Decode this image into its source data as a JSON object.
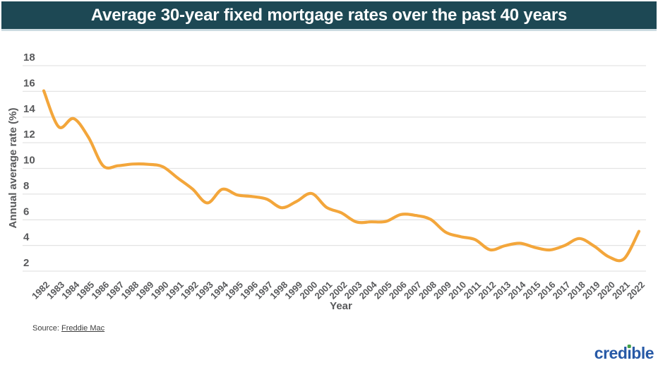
{
  "header": {
    "title": "Average 30-year fixed mortgage rates over the past 40 years",
    "bg_color": "#1d4854",
    "text_color": "#ffffff"
  },
  "chart_data": {
    "type": "line",
    "title": "Average 30-year fixed mortgage rates over the past 40 years",
    "xlabel": "Year",
    "ylabel": "Annual average rate (%)",
    "x": [
      1982,
      1983,
      1984,
      1985,
      1986,
      1987,
      1988,
      1989,
      1990,
      1991,
      1992,
      1993,
      1994,
      1995,
      1996,
      1997,
      1998,
      1999,
      2000,
      2001,
      2002,
      2003,
      2004,
      2005,
      2006,
      2007,
      2008,
      2009,
      2010,
      2011,
      2012,
      2013,
      2014,
      2015,
      2016,
      2017,
      2018,
      2019,
      2020,
      2021,
      2022
    ],
    "values": [
      16.04,
      13.24,
      13.88,
      12.43,
      10.19,
      10.21,
      10.34,
      10.32,
      10.13,
      9.25,
      8.39,
      7.31,
      8.38,
      7.93,
      7.81,
      7.6,
      6.94,
      7.44,
      8.05,
      6.97,
      6.54,
      5.83,
      5.84,
      5.87,
      6.41,
      6.34,
      6.03,
      5.04,
      4.69,
      4.45,
      3.66,
      3.98,
      4.17,
      3.85,
      3.65,
      3.99,
      4.54,
      3.94,
      3.1,
      2.96,
      5.1
    ],
    "ylim": [
      2,
      18
    ],
    "yticks": [
      2,
      4,
      6,
      8,
      10,
      12,
      14,
      16,
      18
    ],
    "grid": true,
    "legend": "none",
    "line_color": "#f3a63b",
    "grid_color": "#e4e4e4",
    "tick_color": "#58595b"
  },
  "footer": {
    "source_prefix": "Source:",
    "source_link": "Freddie Mac"
  },
  "logo": {
    "text_before_i": "cred",
    "dotless_i": "ı",
    "text_after_i": "ble",
    "blue": "#2759a6",
    "dot_green": "#43a047"
  }
}
